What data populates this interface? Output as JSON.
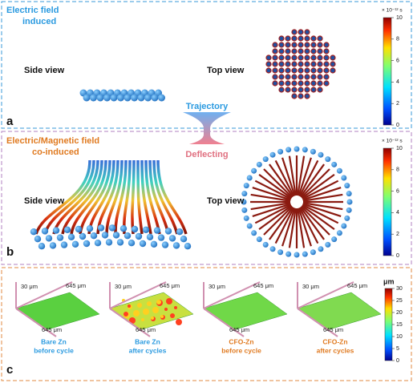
{
  "panel_a": {
    "label": "a",
    "title_lines": [
      "Electric field",
      "induced"
    ],
    "side_view": "Side view",
    "top_view": "Top view",
    "colorbar": {
      "unit": "× 10⁻¹² s",
      "ticks": [
        0,
        2,
        4,
        6,
        8,
        10
      ]
    }
  },
  "transition": {
    "top": "Trajectory",
    "bottom": "Deflecting"
  },
  "panel_b": {
    "label": "b",
    "title_lines": [
      "Electric/Magnetic field",
      "co-induced"
    ],
    "side_view": "Side view",
    "top_view": "Top view",
    "colorbar": {
      "unit": "× 10⁻¹² s",
      "ticks": [
        0,
        2,
        4,
        6,
        8,
        10
      ]
    }
  },
  "panel_c": {
    "label": "c",
    "colorbar": {
      "unit": "μm",
      "ticks": [
        0,
        5,
        10,
        15,
        20,
        25,
        30
      ]
    },
    "samples": [
      {
        "axis_y": "30 μm",
        "axis_x1": "645 μm",
        "axis_x2": "645 μm",
        "caption_lines": [
          "Bare Zn",
          "before cycle"
        ]
      },
      {
        "axis_y": "30 μm",
        "axis_x1": "645 μm",
        "axis_x2": "645 μm",
        "caption_lines": [
          "Bare Zn",
          "after cycles"
        ]
      },
      {
        "axis_y": "30 μm",
        "axis_x1": "645 μm",
        "axis_x2": "645 μm",
        "caption_lines": [
          "CFO-Zn",
          "before cycle"
        ]
      },
      {
        "axis_y": "30 μm",
        "axis_x1": "645 μm",
        "axis_x2": "645 μm",
        "caption_lines": [
          "CFO-Zn",
          "after cycles"
        ]
      }
    ]
  }
}
